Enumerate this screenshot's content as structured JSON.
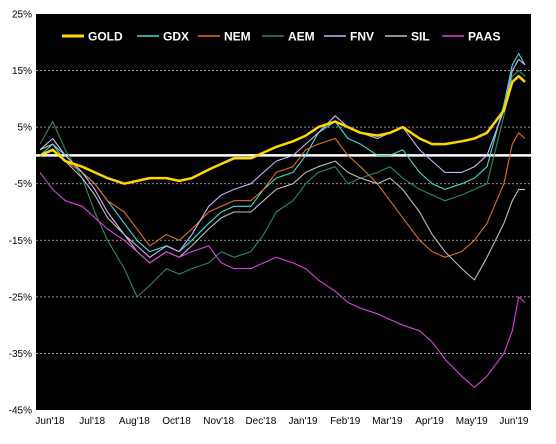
{
  "chart_data": {
    "type": "line",
    "title": "",
    "xlabel": "",
    "ylabel": "",
    "ylim": [
      -45,
      25
    ],
    "y_ticks": [
      "25%",
      "15%",
      "5%",
      "-5%",
      "-15%",
      "-25%",
      "-35%",
      "-45%"
    ],
    "y_tick_values": [
      25,
      15,
      5,
      -5,
      -15,
      -25,
      -35,
      -45
    ],
    "x_ticks": [
      "Jun'18",
      "Jul'18",
      "Aug'18",
      "Oct'18",
      "Nov'18",
      "Dec'18",
      "Jan'19",
      "Feb'19",
      "Mar'19",
      "Apr'19",
      "May'19",
      "Jun'19"
    ],
    "x_tick_positions": [
      0,
      1,
      2,
      3,
      4,
      5,
      6,
      7,
      8,
      9,
      10,
      11
    ],
    "x_range": [
      0,
      11.5
    ],
    "zero_line": 0,
    "grid": "horizontal dashed",
    "legend_placement": "top",
    "background": "#000000",
    "series": [
      {
        "name": "GOLD",
        "color": "#FFD700",
        "x": [
          0,
          0.3,
          0.6,
          1,
          1.3,
          1.6,
          2,
          2.3,
          2.6,
          3,
          3.3,
          3.6,
          4,
          4.3,
          4.6,
          5,
          5.3,
          5.6,
          6,
          6.3,
          6.6,
          7,
          7.3,
          7.6,
          8,
          8.3,
          8.6,
          9,
          9.3,
          9.6,
          10,
          10.3,
          10.6,
          11,
          11.2,
          11.35,
          11.5
        ],
        "values": [
          0,
          1,
          -1,
          -2,
          -3,
          -4,
          -5,
          -4.5,
          -4,
          -4,
          -4.5,
          -4,
          -2.5,
          -1.5,
          -0.5,
          -0.5,
          0.5,
          1.5,
          2.5,
          3.5,
          5,
          6,
          5,
          4,
          3.5,
          4,
          5,
          3,
          2,
          2,
          2.5,
          3,
          4,
          8,
          13,
          14,
          13
        ]
      },
      {
        "name": "GDX",
        "color": "#40E0D0",
        "x": [
          0,
          0.3,
          0.6,
          1,
          1.3,
          1.6,
          2,
          2.3,
          2.6,
          3,
          3.3,
          3.6,
          4,
          4.3,
          4.6,
          5,
          5.3,
          5.6,
          6,
          6.3,
          6.6,
          7,
          7.3,
          7.6,
          8,
          8.3,
          8.6,
          9,
          9.3,
          9.6,
          10,
          10.3,
          10.6,
          11,
          11.2,
          11.35,
          11.5
        ],
        "values": [
          0,
          2,
          0,
          -3,
          -5,
          -8,
          -12,
          -15,
          -17,
          -16,
          -17,
          -15,
          -12,
          -10,
          -9,
          -9,
          -6,
          -4,
          -3,
          0,
          4,
          6,
          3,
          2,
          0,
          0,
          1,
          -3,
          -5,
          -6,
          -5,
          -4,
          -2,
          9,
          16,
          18,
          16
        ]
      },
      {
        "name": "NEM",
        "color": "#E07020",
        "x": [
          0,
          0.3,
          0.6,
          1,
          1.3,
          1.6,
          2,
          2.3,
          2.6,
          3,
          3.3,
          3.6,
          4,
          4.3,
          4.6,
          5,
          5.3,
          5.6,
          6,
          6.3,
          6.6,
          7,
          7.3,
          7.6,
          8,
          8.3,
          8.6,
          9,
          9.3,
          9.6,
          10,
          10.3,
          10.6,
          11,
          11.2,
          11.35,
          11.5
        ],
        "values": [
          0,
          1,
          -1,
          -3,
          -5,
          -8,
          -10,
          -13,
          -16,
          -14,
          -15,
          -13,
          -10,
          -9,
          -8,
          -8,
          -6,
          -3,
          -2,
          1,
          2,
          3,
          0,
          -2,
          -5,
          -8,
          -11,
          -15,
          -17,
          -18,
          -17,
          -15,
          -12,
          -5,
          2,
          4,
          3
        ]
      },
      {
        "name": "AEM",
        "color": "#2E8B57",
        "x": [
          0,
          0.3,
          0.6,
          1,
          1.3,
          1.6,
          2,
          2.3,
          2.6,
          3,
          3.3,
          3.6,
          4,
          4.3,
          4.6,
          5,
          5.3,
          5.6,
          6,
          6.3,
          6.6,
          7,
          7.3,
          7.6,
          8,
          8.3,
          8.6,
          9,
          9.3,
          9.6,
          10,
          10.3,
          10.6,
          11,
          11.2,
          11.35,
          11.5
        ],
        "values": [
          2,
          6,
          1,
          -4,
          -10,
          -15,
          -20,
          -25,
          -23,
          -20,
          -21,
          -20,
          -19,
          -17,
          -18,
          -17,
          -14,
          -10,
          -8,
          -5,
          -3,
          -2,
          -5,
          -4,
          -3,
          -2,
          -4,
          -6,
          -7,
          -8,
          -7,
          -6,
          -5,
          7,
          14,
          15,
          14
        ]
      },
      {
        "name": "FNV",
        "color": "#C8B4FF",
        "x": [
          0,
          0.3,
          0.6,
          1,
          1.3,
          1.6,
          2,
          2.3,
          2.6,
          3,
          3.3,
          3.6,
          4,
          4.3,
          4.6,
          5,
          5.3,
          5.6,
          6,
          6.3,
          6.6,
          7,
          7.3,
          7.6,
          8,
          8.3,
          8.6,
          9,
          9.3,
          9.6,
          10,
          10.3,
          10.6,
          11,
          11.2,
          11.35,
          11.5
        ],
        "values": [
          1,
          3,
          0,
          -3,
          -6,
          -10,
          -14,
          -16,
          -18,
          -16,
          -17,
          -14,
          -9,
          -7,
          -6,
          -5,
          -3,
          -1,
          0,
          2,
          4,
          7,
          5,
          4,
          3,
          4,
          5,
          1,
          -1,
          -3,
          -3,
          -2,
          0,
          8,
          15,
          17,
          16
        ]
      },
      {
        "name": "SIL",
        "color": "#BEBEBE",
        "x": [
          0,
          0.3,
          0.6,
          1,
          1.3,
          1.6,
          2,
          2.3,
          2.6,
          3,
          3.3,
          3.6,
          4,
          4.3,
          4.6,
          5,
          5.3,
          5.6,
          6,
          6.3,
          6.6,
          7,
          7.3,
          7.6,
          8,
          8.3,
          8.6,
          9,
          9.3,
          9.6,
          10,
          10.3,
          10.6,
          11,
          11.2,
          11.35,
          11.5
        ],
        "values": [
          1,
          2,
          -1,
          -4,
          -7,
          -11,
          -14,
          -17,
          -19,
          -17,
          -18,
          -16,
          -13,
          -11,
          -10,
          -10,
          -8,
          -6,
          -5,
          -3,
          -2,
          -1,
          -3,
          -4,
          -5,
          -4,
          -6,
          -10,
          -14,
          -17,
          -20,
          -22,
          -18,
          -12,
          -8,
          -6,
          -6
        ]
      },
      {
        "name": "PAAS",
        "color": "#E040E0",
        "x": [
          0,
          0.3,
          0.6,
          1,
          1.3,
          1.6,
          2,
          2.3,
          2.6,
          3,
          3.3,
          3.6,
          4,
          4.3,
          4.6,
          5,
          5.3,
          5.6,
          6,
          6.3,
          6.6,
          7,
          7.3,
          7.6,
          8,
          8.3,
          8.6,
          9,
          9.3,
          9.6,
          10,
          10.3,
          10.6,
          11,
          11.2,
          11.35,
          11.5
        ],
        "values": [
          -3,
          -6,
          -8,
          -9,
          -11,
          -13,
          -15,
          -17,
          -19,
          -17,
          -18,
          -17,
          -16,
          -19,
          -20,
          -20,
          -19,
          -18,
          -19,
          -20,
          -22,
          -24,
          -26,
          -27,
          -28,
          -29,
          -30,
          -31,
          -33,
          -36,
          -39,
          -41,
          -39,
          -35,
          -31,
          -25,
          -26
        ]
      }
    ]
  }
}
